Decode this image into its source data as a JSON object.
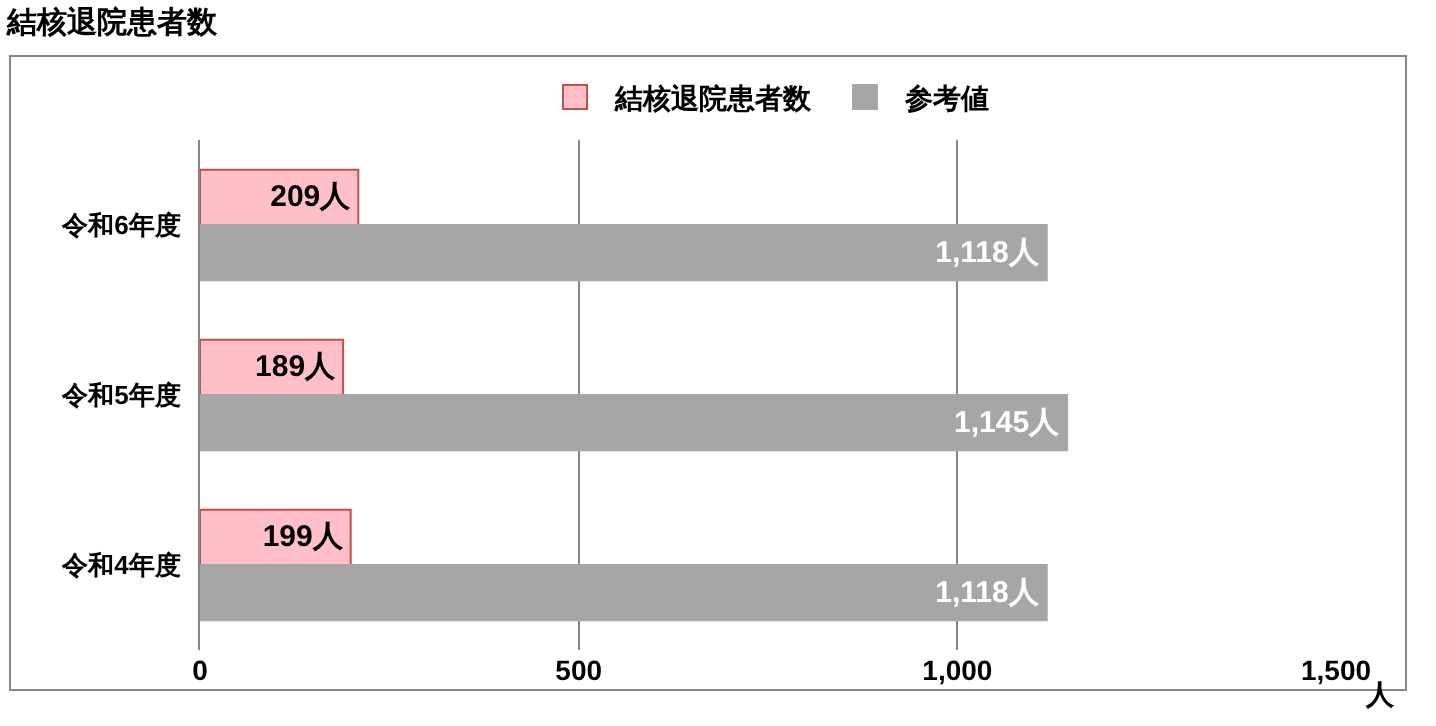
{
  "chart_data": {
    "type": "bar",
    "title": "結核退院患者数",
    "orientation": "horizontal",
    "categories": [
      "令和6年度",
      "令和5年度",
      "令和4年度"
    ],
    "series": [
      {
        "name": "結核退院患者数",
        "color": "#ffbfc8",
        "values": [
          209,
          189,
          199
        ],
        "value_labels": [
          "209人",
          "189人",
          "199人"
        ]
      },
      {
        "name": "参考値",
        "color": "#a6a6a6",
        "values": [
          1118,
          1145,
          1118
        ],
        "value_labels": [
          "1,118人",
          "1,145人",
          "1,118人"
        ]
      }
    ],
    "xlabel": "人",
    "xlim": [
      0,
      1500
    ],
    "xticks": [
      0,
      500,
      {
        "value": 1000,
        "label": "1,000"
      },
      {
        "value": 1500,
        "label": "1,500"
      }
    ],
    "grid": "x",
    "legend": "top"
  }
}
